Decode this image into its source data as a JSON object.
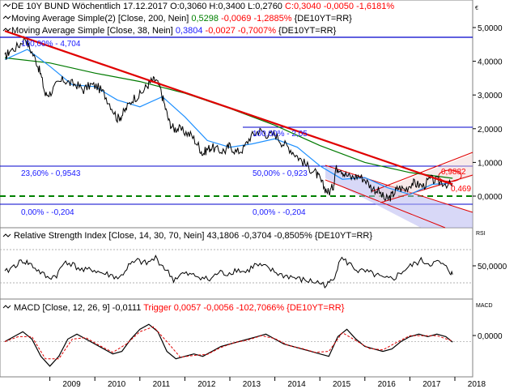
{
  "header": {
    "instrument": "DE 10Y BUND Wöchentlich",
    "date": "17.12.2017",
    "ohlc": "O:0,3060 H:0,3400 L:0,2760",
    "close_change": "C:0,3040 -0,0050 -1,6181%",
    "ma200_label": "Moving Average Simple(2) [Close, 200, Nein]",
    "ma200_value": "0,5298",
    "ma200_change": "-0,0069 -1,2885%",
    "ma200_source": "{DE10YT=RR}",
    "ma38_label": "Moving Average Simple [Close, 38, Nein]",
    "ma38_value": "0,3804",
    "ma38_change": "-0,0027 -0,7007%",
    "ma38_source": "{DE10YT=RR}"
  },
  "currency": "€",
  "fib_labels": {
    "f100": "100,00% - 4,704",
    "f2360": "23,60% - 0,9543",
    "f0_left": "0,00% - -0,204",
    "f100b": "100,00% - 2,05",
    "f50": "50,00% - 0,923",
    "f0_right": "0,00% - -0,204"
  },
  "price_labels": {
    "p1": "0,9882",
    "p2": "0,469"
  },
  "rsi": {
    "title": "Relative Strength Index [Close, 14, 30, 70, Nein]",
    "value": "43,1806",
    "change": "-0,3704 -0,8505% {DE10YT=RR}",
    "side": "RSI",
    "tick": "50,0000"
  },
  "macd": {
    "title": "MACD [Close, 12, 26, 9]",
    "value": "-0,0111",
    "trigger": "Trigger 0,0057 -0,0056 -102,7066% {DE10YT=RR}",
    "side": "MACD",
    "tick": "0,0000"
  },
  "colors": {
    "price": "#000000",
    "ma200": "#007a00",
    "ma38": "#1e90ff",
    "trend": "#e00000",
    "fib": "#0000cc",
    "support": "#008000",
    "macd_trigger": "#e00000"
  },
  "chart_data": [
    {
      "type": "line",
      "title": "DE 10Y BUND Wöchentlich",
      "x_ticks": [
        "2009",
        "2010",
        "2011",
        "2012",
        "2013",
        "2014",
        "2015",
        "2016",
        "2017",
        "2018"
      ],
      "y_ticks": [
        "5,0000",
        "4,0000",
        "3,0000",
        "2,0000",
        "1,0000",
        "0,0000"
      ],
      "ylim": [
        -0.85,
        5.25
      ],
      "xlim": [
        2008.0,
        2018.0
      ],
      "series": [
        {
          "name": "DE 10Y BUND",
          "x": [
            2008.0,
            2008.1,
            2008.3,
            2008.45,
            2008.55,
            2008.7,
            2008.8,
            2008.9,
            2009.0,
            2009.15,
            2009.3,
            2009.45,
            2009.6,
            2009.75,
            2009.9,
            2010.05,
            2010.2,
            2010.35,
            2010.5,
            2010.6,
            2010.7,
            2010.85,
            2011.0,
            2011.15,
            2011.25,
            2011.35,
            2011.45,
            2011.55,
            2011.65,
            2011.75,
            2011.85,
            2012.0,
            2012.15,
            2012.3,
            2012.4,
            2012.5,
            2012.6,
            2012.75,
            2012.9,
            2013.0,
            2013.15,
            2013.3,
            2013.45,
            2013.6,
            2013.7,
            2013.85,
            2014.0,
            2014.15,
            2014.3,
            2014.45,
            2014.6,
            2014.75,
            2014.9,
            2015.0,
            2015.1,
            2015.2,
            2015.3,
            2015.35,
            2015.45,
            2015.55,
            2015.7,
            2015.85,
            2016.0,
            2016.15,
            2016.3,
            2016.45,
            2016.55,
            2016.65,
            2016.75,
            2016.9,
            2017.05,
            2017.15,
            2017.3,
            2017.45,
            2017.6,
            2017.75,
            2017.95
          ],
          "values": [
            4.1,
            4.3,
            4.45,
            4.7,
            4.4,
            4.0,
            3.6,
            3.0,
            3.05,
            3.3,
            3.45,
            3.35,
            3.3,
            3.15,
            3.3,
            3.25,
            3.05,
            2.7,
            2.3,
            2.4,
            2.6,
            2.9,
            3.0,
            3.25,
            3.4,
            3.45,
            3.2,
            2.7,
            2.2,
            2.0,
            2.0,
            1.9,
            1.8,
            1.5,
            1.25,
            1.4,
            1.45,
            1.35,
            1.35,
            1.5,
            1.3,
            1.4,
            1.75,
            1.9,
            1.95,
            1.8,
            1.85,
            1.6,
            1.45,
            1.25,
            1.05,
            0.85,
            0.7,
            0.5,
            0.25,
            0.1,
            0.3,
            0.8,
            0.85,
            0.65,
            0.55,
            0.6,
            0.5,
            0.25,
            0.15,
            -0.1,
            -0.05,
            0.1,
            0.25,
            0.2,
            0.4,
            0.35,
            0.3,
            0.5,
            0.45,
            0.4,
            0.3
          ]
        },
        {
          "name": "MA 38",
          "x": [
            2008.0,
            2008.5,
            2009.0,
            2009.5,
            2010.0,
            2010.5,
            2011.0,
            2011.5,
            2012.0,
            2012.5,
            2013.0,
            2013.5,
            2014.0,
            2014.5,
            2015.0,
            2015.5,
            2016.0,
            2016.5,
            2017.0,
            2017.5,
            2017.95
          ],
          "values": [
            4.05,
            4.35,
            3.85,
            3.3,
            3.25,
            2.85,
            2.65,
            2.95,
            2.35,
            1.65,
            1.45,
            1.55,
            1.7,
            1.45,
            0.9,
            0.5,
            0.55,
            0.25,
            0.05,
            0.35,
            0.38
          ]
        },
        {
          "name": "MA 200",
          "x": [
            2008.0,
            2009.0,
            2010.0,
            2011.0,
            2012.0,
            2013.0,
            2014.0,
            2015.0,
            2016.0,
            2017.0,
            2017.95
          ],
          "values": [
            4.1,
            3.95,
            3.65,
            3.4,
            3.05,
            2.6,
            2.1,
            1.5,
            1.0,
            0.7,
            0.53
          ]
        },
        {
          "name": "Trend",
          "x": [
            2008.0,
            2017.95
          ],
          "values": [
            4.9,
            0.35
          ]
        }
      ],
      "fib_levels": [
        4.704,
        2.05,
        0.9543,
        -0.204
      ],
      "support_level": 0.06
    },
    {
      "type": "line",
      "title": "Relative Strength Index [Close, 14, 30, 70, Nein]",
      "y_ticks": [
        "50,0000"
      ],
      "ylim": [
        10,
        90
      ],
      "xlim": [
        2008.0,
        2018.0
      ],
      "series": [
        {
          "name": "RSI",
          "x": [
            2008.0,
            2008.2,
            2008.4,
            2008.55,
            2008.75,
            2008.95,
            2009.15,
            2009.35,
            2009.55,
            2009.75,
            2009.95,
            2010.15,
            2010.35,
            2010.55,
            2010.75,
            2010.95,
            2011.15,
            2011.35,
            2011.55,
            2011.75,
            2011.95,
            2012.15,
            2012.35,
            2012.55,
            2012.75,
            2012.95,
            2013.15,
            2013.35,
            2013.55,
            2013.75,
            2013.95,
            2014.15,
            2014.35,
            2014.55,
            2014.75,
            2014.95,
            2015.15,
            2015.3,
            2015.45,
            2015.65,
            2015.85,
            2016.05,
            2016.25,
            2016.45,
            2016.65,
            2016.85,
            2017.05,
            2017.25,
            2017.45,
            2017.65,
            2017.85,
            2017.95
          ],
          "values": [
            45,
            55,
            62,
            58,
            48,
            38,
            42,
            62,
            55,
            48,
            50,
            45,
            42,
            38,
            55,
            62,
            58,
            66,
            52,
            36,
            44,
            42,
            40,
            35,
            46,
            44,
            50,
            46,
            56,
            54,
            48,
            42,
            40,
            36,
            34,
            32,
            28,
            36,
            66,
            58,
            48,
            46,
            42,
            36,
            38,
            48,
            56,
            62,
            58,
            60,
            50,
            43
          ]
        }
      ]
    },
    {
      "type": "line",
      "title": "MACD [Close, 12, 26, 9]",
      "y_ticks": [
        "0,0000"
      ],
      "ylim": [
        -0.7,
        0.6
      ],
      "xlim": [
        2008.0,
        2018.0
      ],
      "series": [
        {
          "name": "MACD",
          "x": [
            2008.0,
            2008.2,
            2008.4,
            2008.6,
            2008.8,
            2009.0,
            2009.2,
            2009.4,
            2009.6,
            2009.8,
            2010.0,
            2010.2,
            2010.4,
            2010.6,
            2010.8,
            2011.0,
            2011.2,
            2011.4,
            2011.6,
            2011.8,
            2012.0,
            2012.2,
            2012.4,
            2012.6,
            2012.8,
            2013.0,
            2013.2,
            2013.4,
            2013.6,
            2013.8,
            2014.0,
            2014.2,
            2014.4,
            2014.6,
            2014.8,
            2015.0,
            2015.2,
            2015.4,
            2015.6,
            2015.8,
            2016.0,
            2016.2,
            2016.4,
            2016.6,
            2016.8,
            2017.0,
            2017.2,
            2017.4,
            2017.6,
            2017.8,
            2017.95
          ],
          "values": [
            0.0,
            0.1,
            0.2,
            0.05,
            -0.3,
            -0.5,
            -0.3,
            0.05,
            0.15,
            0.05,
            -0.05,
            -0.15,
            -0.25,
            -0.2,
            0.05,
            0.25,
            0.35,
            0.2,
            -0.2,
            -0.35,
            -0.3,
            -0.25,
            -0.3,
            -0.2,
            -0.1,
            -0.05,
            0.0,
            0.05,
            0.1,
            0.15,
            0.05,
            -0.05,
            -0.1,
            -0.15,
            -0.2,
            -0.25,
            -0.3,
            0.1,
            0.25,
            0.05,
            -0.1,
            -0.15,
            -0.2,
            -0.15,
            0.0,
            0.1,
            0.15,
            0.1,
            0.15,
            0.1,
            -0.01
          ]
        },
        {
          "name": "Trigger",
          "x": [
            2008.0,
            2008.3,
            2008.6,
            2008.9,
            2009.2,
            2009.5,
            2009.8,
            2010.1,
            2010.4,
            2010.7,
            2011.0,
            2011.3,
            2011.6,
            2011.9,
            2012.2,
            2012.5,
            2012.8,
            2013.1,
            2013.4,
            2013.7,
            2014.0,
            2014.3,
            2014.6,
            2014.9,
            2015.2,
            2015.5,
            2015.8,
            2016.1,
            2016.4,
            2016.7,
            2017.0,
            2017.3,
            2017.6,
            2017.95
          ],
          "values": [
            0.0,
            0.1,
            0.1,
            -0.35,
            -0.35,
            0.05,
            0.08,
            -0.08,
            -0.22,
            -0.05,
            0.2,
            0.3,
            0.0,
            -0.32,
            -0.28,
            -0.26,
            -0.12,
            -0.02,
            0.03,
            0.12,
            0.06,
            -0.08,
            -0.14,
            -0.22,
            -0.2,
            0.18,
            0.02,
            -0.14,
            -0.17,
            -0.02,
            0.12,
            0.12,
            0.12,
            0.01
          ]
        }
      ]
    }
  ]
}
